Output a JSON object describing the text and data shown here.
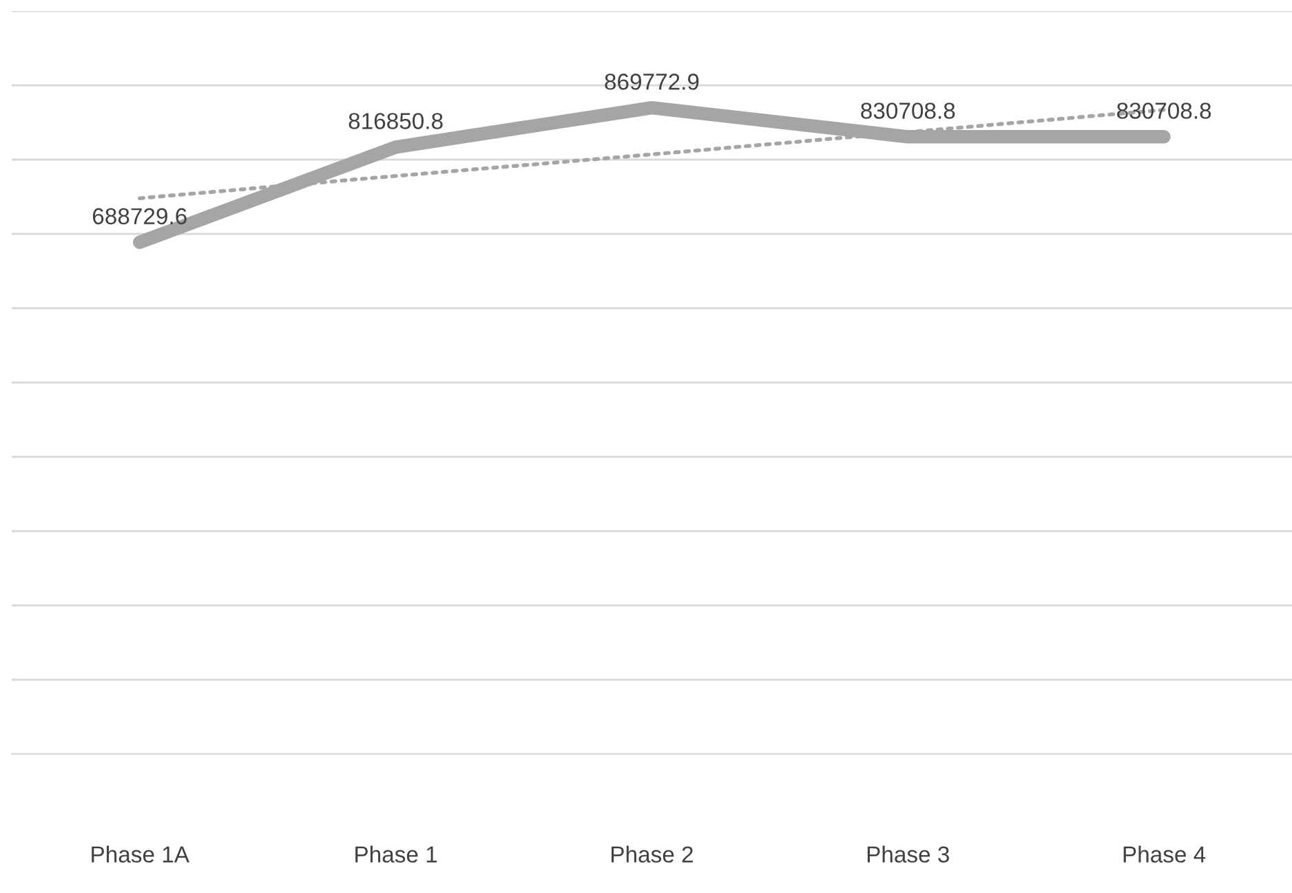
{
  "chart_data": {
    "type": "line",
    "categories": [
      "Phase 1A",
      "Phase 1",
      "Phase 2",
      "Phase 3",
      "Phase 4"
    ],
    "series": [
      {
        "color": "#a5a5a5",
        "values": [
          688729.6,
          816850.8,
          869772.9,
          830708.8,
          830708.8
        ],
        "value_labels": [
          "688729.6",
          "816850.8",
          "869772.9",
          "830708.8",
          "830708.8"
        ]
      },
      {
        "type": "line",
        "color": "#a5a5a5",
        "line_style": "dotted",
        "values": [
          748000,
          778000,
          807000,
          837000,
          867000
        ]
      }
    ],
    "ylim": [
      0,
      1000000
    ],
    "yticks": [
      {
        "value": 0,
        "label": null
      },
      {
        "value": 100000,
        "label": null
      },
      {
        "value": 200000,
        "label": null
      },
      {
        "value": 300000,
        "label": null
      },
      {
        "value": 400000,
        "label": null
      },
      {
        "value": 500000,
        "label": null
      },
      {
        "value": 600000,
        "label": null
      },
      {
        "value": 700000,
        "label": null
      },
      {
        "value": 800000,
        "label": null
      },
      {
        "value": 900000,
        "label": null
      },
      {
        "value": 1000000,
        "label": null
      }
    ],
    "grid": "y",
    "tick_labels": "x",
    "line_style": "solid",
    "marker": "none"
  }
}
